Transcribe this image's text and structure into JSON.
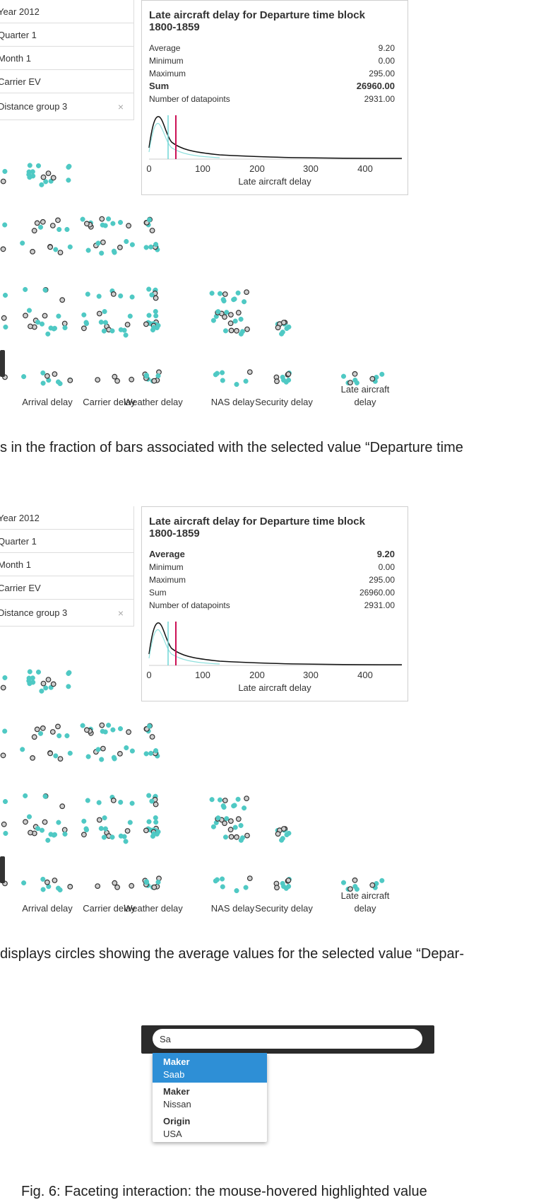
{
  "filters": [
    "Year 2012",
    "Quarter 1",
    "Month 1",
    "Carrier EV",
    "Distance group 3"
  ],
  "filter_remove_glyph": "×",
  "stats_panels": [
    {
      "title_line1": "Late aircraft delay for Departure time block",
      "title_line2": "1800-1859",
      "rows": [
        {
          "label": "Average",
          "value": "9.20",
          "bold": false
        },
        {
          "label": "Minimum",
          "value": "0.00",
          "bold": false
        },
        {
          "label": "Maximum",
          "value": "295.00",
          "bold": false
        },
        {
          "label": "Sum",
          "value": "26960.00",
          "bold": true
        },
        {
          "label": "Number of datapoints",
          "value": "2931.00",
          "bold": false
        }
      ]
    },
    {
      "title_line1": "Late aircraft delay for Departure time block",
      "title_line2": "1800-1859",
      "rows": [
        {
          "label": "Average",
          "value": "9.20",
          "bold": true
        },
        {
          "label": "Minimum",
          "value": "0.00",
          "bold": false
        },
        {
          "label": "Maximum",
          "value": "295.00",
          "bold": false
        },
        {
          "label": "Sum",
          "value": "26960.00",
          "bold": false
        },
        {
          "label": "Number of datapoints",
          "value": "2931.00",
          "bold": false
        }
      ]
    }
  ],
  "histogram": {
    "xlabel": "Late aircraft delay",
    "ticks": [
      "0",
      "100",
      "200",
      "300",
      "400"
    ],
    "colors": {
      "density": "#111111",
      "selected": "#6fd6d6",
      "mean": "#cc1155"
    }
  },
  "scatter": {
    "columns": [
      "Arrival delay",
      "Carrier delay",
      "Weather delay",
      "NAS delay",
      "Security delay",
      "Late aircraft delay"
    ],
    "colors": {
      "fill": "#4fc9c4",
      "outline": "#333333"
    }
  },
  "captions": [
    "s in the fraction of bars associated with the selected value “Departure time",
    "displays circles showing the average values for the selected value “Depar-"
  ],
  "autocomplete": {
    "query": "Sa",
    "items": [
      {
        "key": "Maker",
        "value": "Saab",
        "active": true
      },
      {
        "key": "Maker",
        "value": "Nissan",
        "active": false
      },
      {
        "key": "Origin",
        "value": "USA",
        "active": false
      }
    ]
  },
  "figure_caption": "Fig. 6: Faceting interaction: the mouse-hovered highlighted value"
}
